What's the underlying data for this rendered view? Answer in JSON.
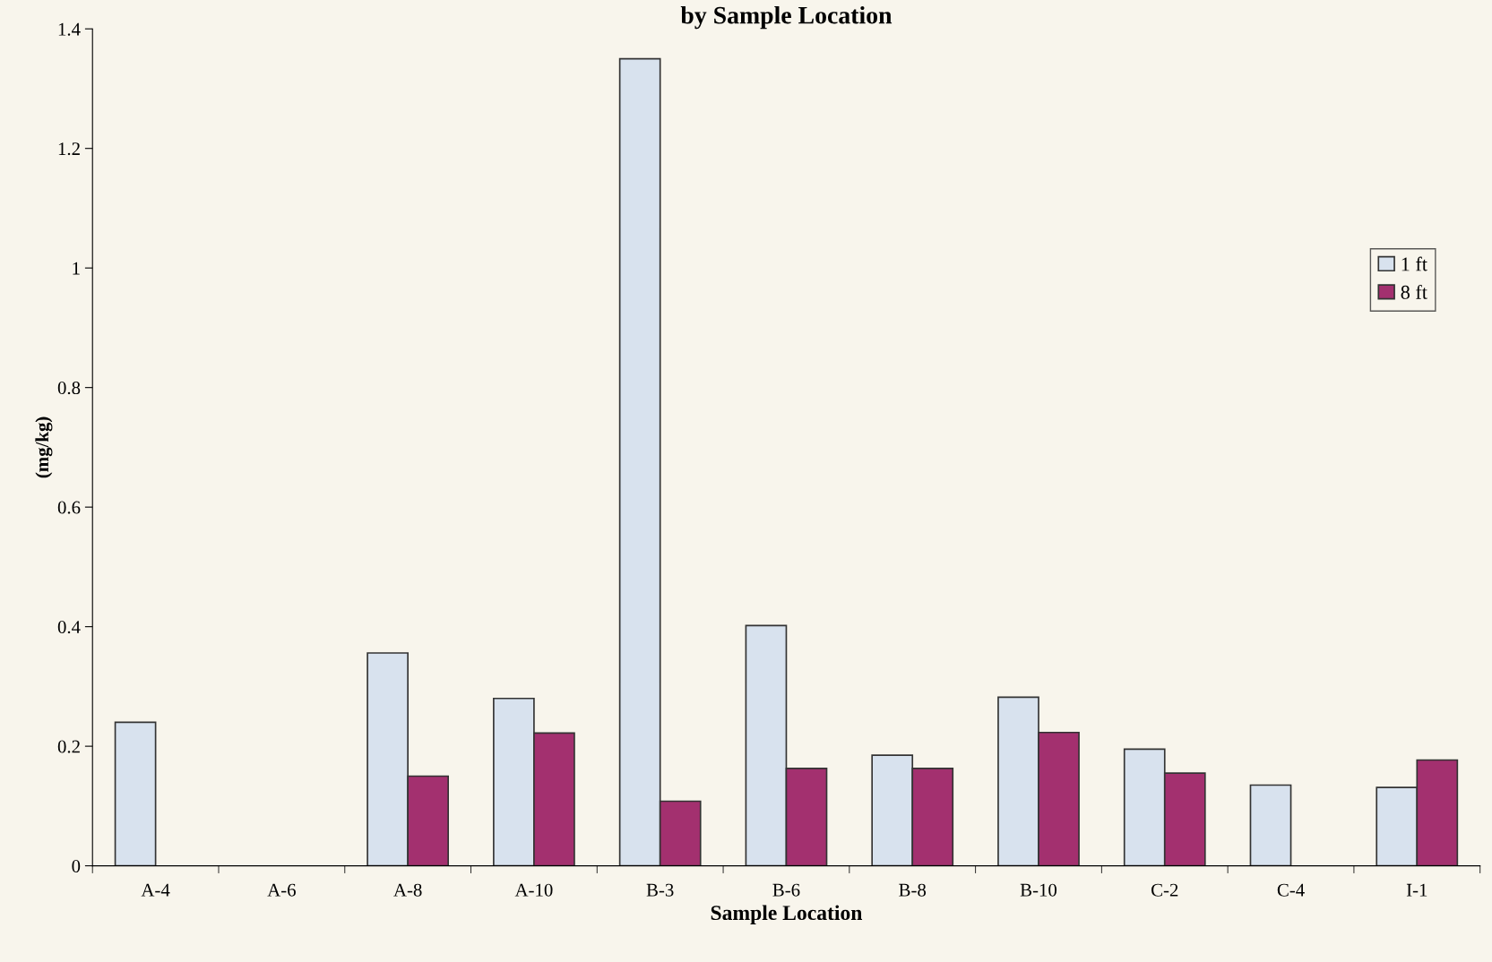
{
  "chart_data": {
    "type": "bar",
    "title": "by Sample Location",
    "xlabel": "Sample Location",
    "ylabel": "(mg/kg)",
    "categories": [
      "A-4",
      "A-6",
      "A-8",
      "A-10",
      "B-3",
      "B-6",
      "B-8",
      "B-10",
      "C-2",
      "C-4",
      "I-1"
    ],
    "series": [
      {
        "name": "1 ft",
        "color": "#d8e2ee",
        "values": [
          0.24,
          null,
          0.356,
          0.28,
          1.35,
          0.402,
          0.185,
          0.282,
          0.195,
          0.135,
          0.131
        ]
      },
      {
        "name": "8 ft",
        "color": "#a3306f",
        "values": [
          null,
          null,
          0.15,
          0.222,
          0.108,
          0.163,
          0.163,
          0.223,
          0.155,
          null,
          0.177
        ]
      }
    ],
    "ylim": [
      0,
      1.4
    ],
    "yticks": [
      0,
      0.2,
      0.4,
      0.6,
      0.8,
      1,
      1.2,
      1.4
    ],
    "grid": false,
    "legend": "right"
  }
}
